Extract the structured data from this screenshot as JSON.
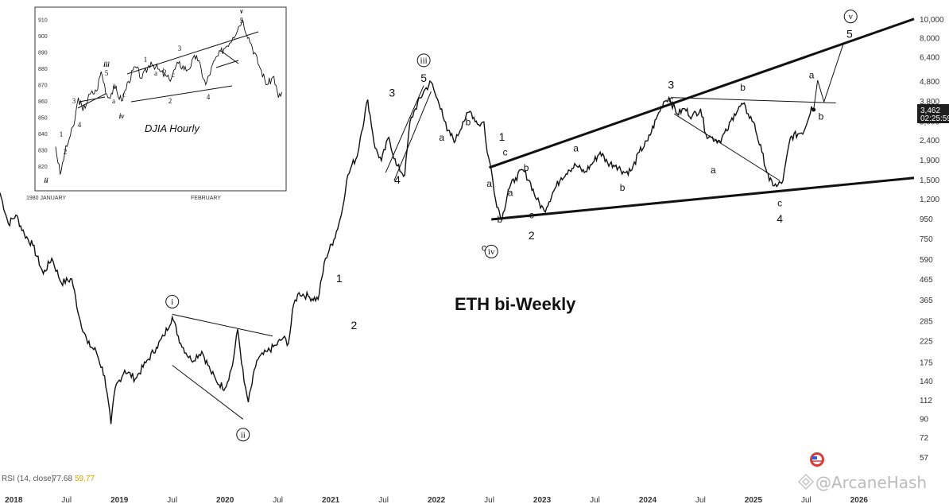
{
  "chart_data": [
    {
      "type": "line",
      "title": "ETH bi-Weekly",
      "scale": "log",
      "ylim": [
        50,
        11500
      ],
      "xlim": [
        2017.87,
        2026.52
      ],
      "y_ticks": [
        57,
        72,
        90,
        112,
        140,
        175,
        225,
        285,
        365,
        465,
        590,
        750,
        950,
        1200,
        1500,
        1900,
        2400,
        3000,
        3800,
        4800,
        6400,
        8000,
        10000
      ],
      "y_tick_labels": [
        "57",
        "72",
        "90",
        "112",
        "140",
        "175",
        "225",
        "285",
        "365",
        "465",
        "590",
        "750",
        "950",
        "1,200",
        "1,500",
        "1,900",
        "2,400",
        "3,000",
        "3,800",
        "4,800",
        "6,400",
        "8,000",
        "10,000"
      ],
      "x_ticks": [
        {
          "t": 2018.0,
          "label": "2018"
        },
        {
          "t": 2018.5,
          "label": "Jul"
        },
        {
          "t": 2019.0,
          "label": "2019"
        },
        {
          "t": 2019.5,
          "label": "Jul"
        },
        {
          "t": 2020.0,
          "label": "2020"
        },
        {
          "t": 2020.5,
          "label": "Jul"
        },
        {
          "t": 2021.0,
          "label": "2021"
        },
        {
          "t": 2021.5,
          "label": "Jul"
        },
        {
          "t": 2022.0,
          "label": "2022"
        },
        {
          "t": 2022.5,
          "label": "Jul"
        },
        {
          "t": 2023.0,
          "label": "2023"
        },
        {
          "t": 2023.5,
          "label": "Jul"
        },
        {
          "t": 2024.0,
          "label": "2024"
        },
        {
          "t": 2024.5,
          "label": "Jul"
        },
        {
          "t": 2025.0,
          "label": "2025"
        },
        {
          "t": 2025.5,
          "label": "Jul"
        },
        {
          "t": 2026.0,
          "label": "2026"
        }
      ],
      "series": [
        {
          "x": [
            2017.87,
            2017.95,
            2018.02,
            2018.1,
            2018.18,
            2018.28,
            2018.36,
            2018.45,
            2018.55,
            2018.62,
            2018.7,
            2018.78,
            2018.86,
            2018.92,
            2018.96,
            2019.05,
            2019.15,
            2019.25,
            2019.35,
            2019.42,
            2019.5,
            2019.58,
            2019.68,
            2019.78,
            2019.86,
            2019.92,
            2020.0,
            2020.07,
            2020.12,
            2020.18,
            2020.22,
            2020.3,
            2020.4,
            2020.48,
            2020.55,
            2020.6,
            2020.65,
            2020.7,
            2020.8,
            2020.88,
            2020.95,
            2021.03,
            2021.1,
            2021.15,
            2021.2,
            2021.25,
            2021.28,
            2021.35,
            2021.42,
            2021.48,
            2021.55,
            2021.62,
            2021.7,
            2021.75,
            2021.8,
            2021.88,
            2021.95,
            2022.0,
            2022.05,
            2022.1,
            2022.18,
            2022.25,
            2022.32,
            2022.4,
            2022.45,
            2022.48,
            2022.52,
            2022.56,
            2022.62,
            2022.68,
            2022.75,
            2022.82,
            2022.88,
            2022.95,
            2023.02,
            2023.1,
            2023.18,
            2023.25,
            2023.32,
            2023.4,
            2023.48,
            2023.55,
            2023.62,
            2023.7,
            2023.78,
            2023.85,
            2023.92,
            2024.0,
            2024.08,
            2024.15,
            2024.2,
            2024.28,
            2024.35,
            2024.42,
            2024.5,
            2024.55,
            2024.6,
            2024.68,
            2024.75,
            2024.82,
            2024.9,
            2024.95,
            2025.0,
            2025.08,
            2025.15,
            2025.22,
            2025.28,
            2025.35,
            2025.42,
            2025.48,
            2025.55,
            2025.57
          ],
          "y": [
            1300,
            900,
            1000,
            800,
            700,
            500,
            600,
            450,
            470,
            300,
            220,
            200,
            150,
            85,
            130,
            160,
            145,
            175,
            210,
            240,
            300,
            220,
            180,
            200,
            160,
            140,
            130,
            170,
            260,
            140,
            110,
            180,
            200,
            215,
            235,
            220,
            350,
            400,
            380,
            370,
            600,
            750,
            1000,
            1500,
            1800,
            2000,
            2500,
            3900,
            2200,
            1900,
            2500,
            1800,
            1600,
            3000,
            3500,
            4300,
            4800,
            4000,
            3500,
            2700,
            2400,
            3000,
            3400,
            2900,
            3000,
            2100,
            1700,
            1200,
            950,
            1350,
            1550,
            1700,
            1500,
            1200,
            1050,
            1300,
            1550,
            1700,
            1800,
            1650,
            1850,
            2100,
            1850,
            1800,
            1650,
            1700,
            2100,
            2400,
            3100,
            3800,
            4000,
            3300,
            3500,
            3200,
            3500,
            2600,
            2500,
            2400,
            2700,
            3300,
            3700,
            3300,
            3000,
            2100,
            1500,
            1400,
            1500,
            2500,
            2600,
            2700,
            3600,
            3462
          ]
        }
      ],
      "last_price": "3,462",
      "countdown": "02:25:59",
      "rsi_label": "RSI (14, close)",
      "rsi_values": [
        "77.68",
        "59.77"
      ],
      "projection": {
        "a": 4900,
        "b": 3800,
        "target": 7500,
        "target_t": 2025.85
      },
      "labels": [
        {
          "text": "i",
          "circled": true,
          "t": 2019.5,
          "price": 360
        },
        {
          "text": "ii",
          "circled": true,
          "t": 2020.17,
          "price": 75
        },
        {
          "text": "iii",
          "circled": true,
          "t": 2021.88,
          "price": 6200
        },
        {
          "text": "iv",
          "circled": true,
          "t": 2022.52,
          "price": 650
        },
        {
          "text": "v",
          "circled": true,
          "t": 2025.92,
          "price": 10400
        },
        {
          "text": "1",
          "circled": false,
          "t": 2021.08,
          "price": 470
        },
        {
          "text": "2",
          "circled": false,
          "t": 2021.22,
          "price": 270
        },
        {
          "text": "3",
          "circled": false,
          "t": 2021.58,
          "price": 4200
        },
        {
          "text": "4",
          "circled": false,
          "t": 2021.63,
          "price": 1500
        },
        {
          "text": "5",
          "circled": false,
          "t": 2021.88,
          "price": 5000
        },
        {
          "text": "a",
          "circled": false,
          "t": 2022.05,
          "price": 2500
        },
        {
          "text": "b",
          "circled": false,
          "t": 2022.3,
          "price": 3000
        },
        {
          "text": "c",
          "circled": false,
          "t": 2022.45,
          "price": 680
        },
        {
          "text": "a",
          "circled": false,
          "t": 2022.5,
          "price": 1450
        },
        {
          "text": "b",
          "circled": false,
          "t": 2022.6,
          "price": 950
        },
        {
          "text": "1",
          "circled": false,
          "t": 2022.62,
          "price": 2500
        },
        {
          "text": "c",
          "circled": false,
          "t": 2022.65,
          "price": 2100
        },
        {
          "text": "a",
          "circled": false,
          "t": 2022.7,
          "price": 1300
        },
        {
          "text": "b",
          "circled": false,
          "t": 2022.85,
          "price": 1750
        },
        {
          "text": "c",
          "circled": false,
          "t": 2022.9,
          "price": 1000
        },
        {
          "text": "2",
          "circled": false,
          "t": 2022.9,
          "price": 780
        },
        {
          "text": "a",
          "circled": false,
          "t": 2023.32,
          "price": 2200
        },
        {
          "text": "b",
          "circled": false,
          "t": 2023.76,
          "price": 1380
        },
        {
          "text": "3",
          "circled": false,
          "t": 2024.22,
          "price": 4600
        },
        {
          "text": "c",
          "circled": false,
          "t": 2024.22,
          "price": 3900
        },
        {
          "text": "a",
          "circled": false,
          "t": 2024.62,
          "price": 1700
        },
        {
          "text": "b",
          "circled": false,
          "t": 2024.9,
          "price": 4500
        },
        {
          "text": "c",
          "circled": false,
          "t": 2025.25,
          "price": 1150
        },
        {
          "text": "4",
          "circled": false,
          "t": 2025.25,
          "price": 950
        },
        {
          "text": "a",
          "circled": false,
          "t": 2025.55,
          "price": 5200
        },
        {
          "text": "b",
          "circled": false,
          "t": 2025.64,
          "price": 3200
        },
        {
          "text": "5",
          "circled": false,
          "t": 2025.91,
          "price": 8400
        }
      ],
      "guide_lines": [
        {
          "w": 3,
          "p": [
            [
              2022.5,
              1750
            ],
            [
              2026.52,
              10100
            ]
          ]
        },
        {
          "w": 3,
          "p": [
            [
              2022.52,
              950
            ],
            [
              2026.52,
              1550
            ]
          ]
        },
        {
          "w": 1,
          "p": [
            [
              2024.22,
              4000
            ],
            [
              2025.78,
              3750
            ]
          ]
        },
        {
          "w": 1,
          "p": [
            [
              2019.5,
              310
            ],
            [
              2020.45,
              240
            ]
          ]
        },
        {
          "w": 1,
          "p": [
            [
              2019.5,
              170
            ],
            [
              2020.17,
              90
            ]
          ]
        },
        {
          "w": 1,
          "p": [
            [
              2021.52,
              1650
            ],
            [
              2021.88,
              4600
            ]
          ]
        },
        {
          "w": 1,
          "p": [
            [
              2021.6,
              1500
            ],
            [
              2021.95,
              4300
            ]
          ]
        },
        {
          "w": 1,
          "p": [
            [
              2024.25,
              3300
            ],
            [
              2025.25,
              1500
            ]
          ]
        }
      ]
    },
    {
      "type": "line",
      "title": "DJIA Hourly",
      "ylim": [
        806,
        916
      ],
      "y_ticks": [
        820,
        830,
        840,
        850,
        860,
        870,
        880,
        890,
        900,
        910
      ],
      "x_tick_labels": [
        "1980 JANUARY",
        "FEBRUARY"
      ],
      "series": [
        {
          "x": [
            0,
            2,
            4,
            6,
            8,
            10,
            12,
            15,
            18,
            20,
            23,
            26,
            29,
            32,
            35,
            38,
            42,
            46,
            50,
            54,
            58,
            62,
            66,
            70,
            74,
            78,
            82,
            86,
            90,
            93,
            96,
            98,
            100
          ],
          "y": [
            832,
            815,
            828,
            837,
            845,
            862,
            854,
            864,
            866,
            878,
            862,
            868,
            860,
            872,
            881,
            874,
            884,
            878,
            873,
            883,
            879,
            888,
            870,
            885,
            892,
            899,
            910,
            895,
            880,
            870,
            875,
            862,
            866
          ]
        }
      ],
      "labels": [
        "ii",
        "1",
        "2",
        "3",
        "4",
        "iii",
        "5",
        "iv",
        "a",
        "b",
        "c",
        "1",
        "2",
        "3",
        "4",
        "a",
        "b",
        "c",
        "v",
        "5"
      ]
    }
  ],
  "watermark": "@ArcaneHash",
  "colors": {
    "line": "#111111",
    "price_box": "#1f1f1f",
    "flag_red": "#d93a3a",
    "flag_blue": "#3b5bdb"
  }
}
